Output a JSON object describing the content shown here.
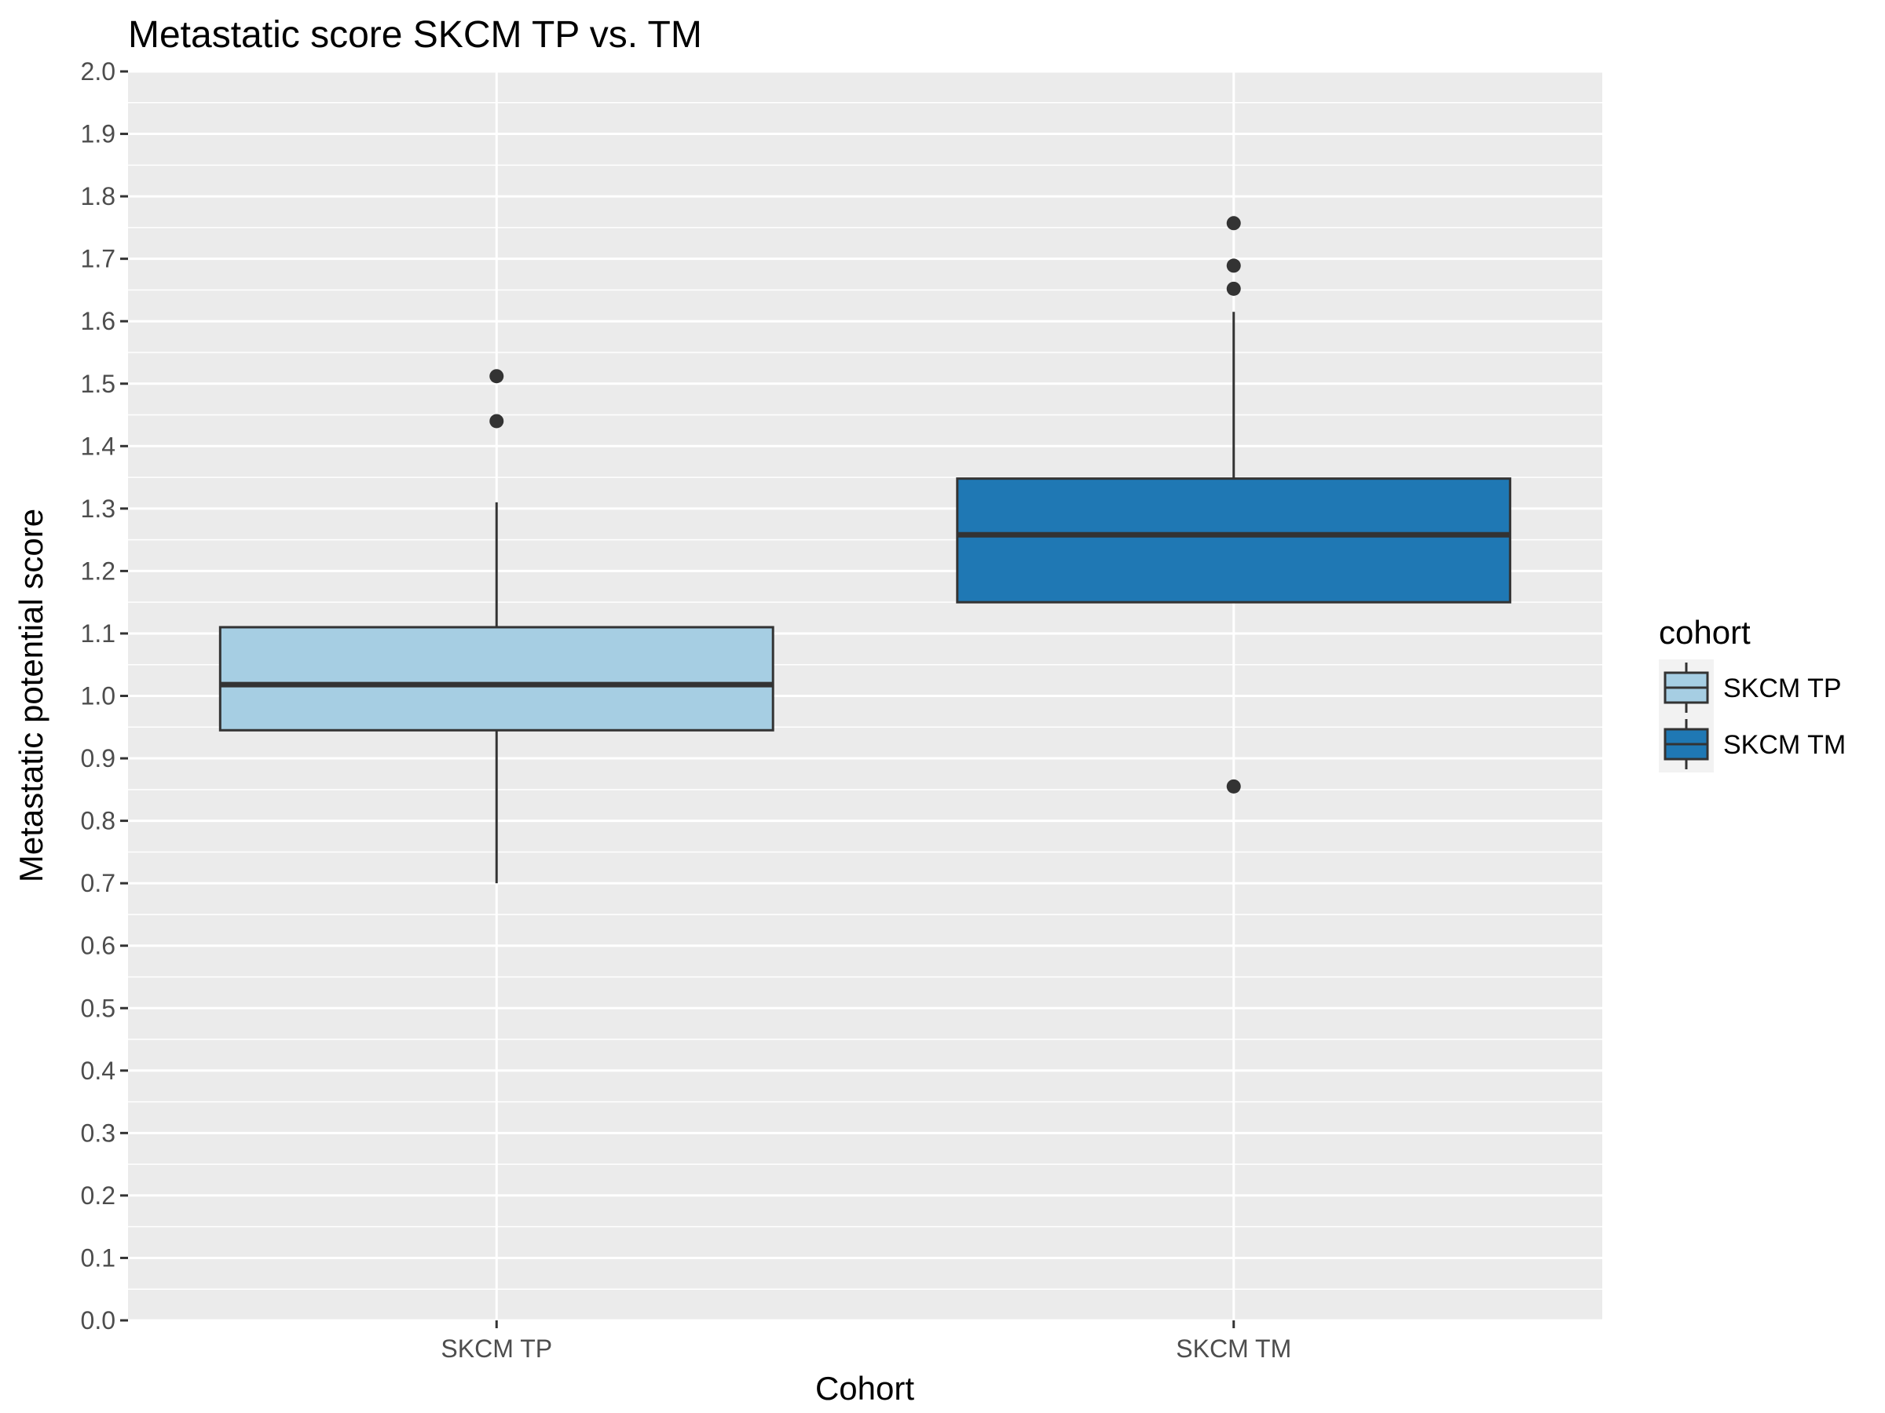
{
  "chart_data": {
    "type": "box",
    "title": "Metastatic score SKCM TP vs. TM",
    "xlabel": "Cohort",
    "ylabel": "Metastatic potential score",
    "ylim": [
      0.0,
      2.0
    ],
    "yticks": [
      "0.0",
      "0.1",
      "0.2",
      "0.3",
      "0.4",
      "0.5",
      "0.6",
      "0.7",
      "0.8",
      "0.9",
      "1.0",
      "1.1",
      "1.2",
      "1.3",
      "1.4",
      "1.5",
      "1.6",
      "1.7",
      "1.8",
      "1.9",
      "2.0"
    ],
    "grid": true,
    "legend": {
      "title": "cohort",
      "position": "right"
    },
    "categories": [
      "SKCM TP",
      "SKCM TM"
    ],
    "series": [
      {
        "name": "SKCM TP",
        "color": "#a6cee3",
        "lower_whisker": 0.7,
        "q1": 0.945,
        "median": 1.018,
        "q3": 1.11,
        "upper_whisker": 1.31,
        "outliers": [
          1.44,
          1.512
        ]
      },
      {
        "name": "SKCM TM",
        "color": "#1f78b4",
        "lower_whisker": 1.15,
        "q1": 1.15,
        "median": 1.258,
        "q3": 1.348,
        "upper_whisker": 1.615,
        "outliers": [
          0.855,
          1.652,
          1.689,
          1.757
        ]
      }
    ],
    "colors": {
      "panel_background": "#ebebeb",
      "grid_line": "#ffffff",
      "box_outline": "#333333",
      "legend_key_background": "#f2f2f2"
    }
  }
}
